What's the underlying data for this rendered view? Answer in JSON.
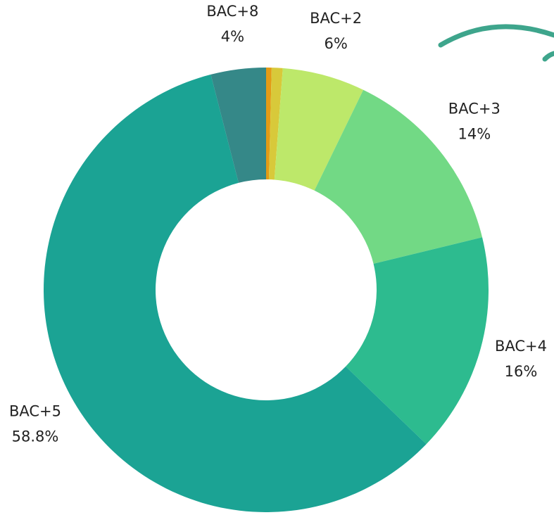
{
  "chart_data": {
    "type": "donut",
    "categories": [
      null,
      null,
      "BAC+2",
      "BAC+3",
      "BAC+4",
      "BAC+5",
      "BAC+8"
    ],
    "values": [
      0.4,
      0.8,
      6,
      14,
      16,
      58.8,
      4
    ],
    "value_labels": [
      null,
      null,
      "6%",
      "14%",
      "16%",
      "58.8%",
      "4%"
    ],
    "colors": [
      "#e39b16",
      "#d8c93a",
      "#bde86a",
      "#72d985",
      "#2dbb8f",
      "#1ba394",
      "#358888"
    ]
  }
}
